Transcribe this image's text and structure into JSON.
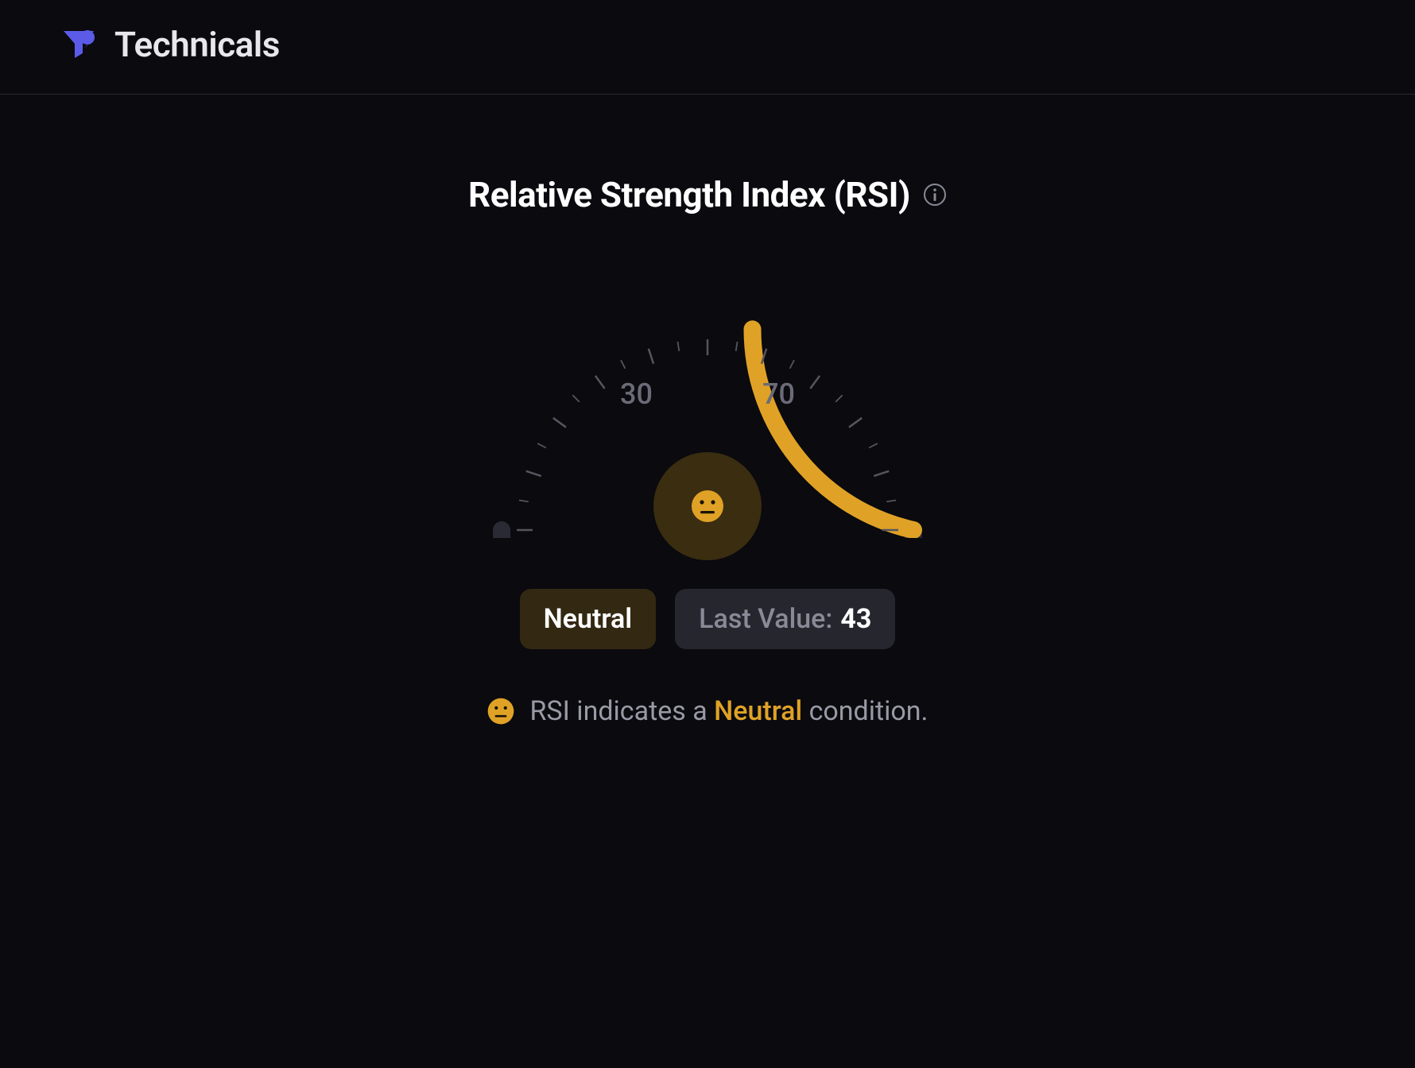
{
  "header": {
    "title": "Technicals",
    "logo_color": "#5b5be8"
  },
  "rsi": {
    "title": "Relative Strength Index (RSI)",
    "info_icon_color": "#8a8a96",
    "gauge": {
      "type": "gauge",
      "min": 0,
      "max": 100,
      "value": 43,
      "fill_color": "#e0a226",
      "track_color": "#2a2a34",
      "tick_color": "#55555f",
      "tick_count_major": 11,
      "tick_count_minor": 20,
      "arc_stroke_width": 22,
      "marker_low": 30,
      "marker_high": 70,
      "label_color": "#6b6b78",
      "label_fontsize": 36,
      "center_circle_bg": "#3a2d10",
      "emoji_face_color": "#e0a226"
    },
    "status_label": "Neutral",
    "status_pill_bg": "#332812",
    "last_value_label": "Last Value:",
    "last_value": "43",
    "last_value_pill_bg": "#26262e",
    "summary_prefix": "RSI indicates a",
    "summary_highlight": "Neutral",
    "summary_suffix": "condition.",
    "summary_highlight_color": "#e0a226",
    "summary_text_color": "#9a9aa6"
  },
  "colors": {
    "page_bg": "#0a0a0f",
    "divider": "#27272f",
    "text_primary": "#e8e8ec",
    "text_white": "#ffffff"
  }
}
